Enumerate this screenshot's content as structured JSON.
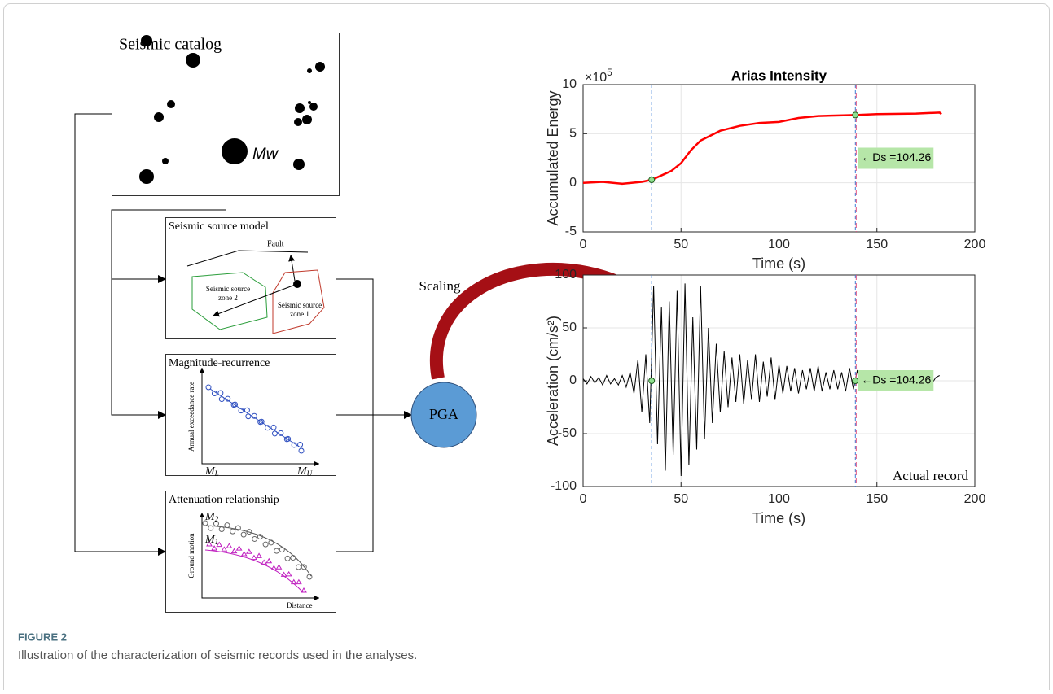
{
  "figure": {
    "label": "FIGURE 2",
    "caption": "Illustration of the characterization of seismic records used in the analyses."
  },
  "diagram": {
    "catalog": {
      "title": "Seismic catalog",
      "mw": "Mw"
    },
    "source_model": {
      "title": "Seismic source model",
      "fault": "Fault",
      "zone2": [
        "Seismic source",
        "zone 2"
      ],
      "zone1": [
        "Seismic source",
        "zone 1"
      ]
    },
    "recurrence": {
      "title": "Magnitude-recurrence",
      "y_label": "Annual exceedance rate",
      "x_start": {
        "base": "M",
        "sub": "L"
      },
      "x_end": {
        "base": "M",
        "sub": "U"
      }
    },
    "attenuation": {
      "title": "Attenuation relationship",
      "y_label": "Ground motion",
      "x_label": "Distance",
      "curve_upper": {
        "base": "M",
        "sub": "2"
      },
      "curve_lower": {
        "base": "M",
        "sub": "1"
      }
    },
    "pga": "PGA",
    "scaling": "Scaling"
  },
  "chart_data": [
    {
      "type": "line",
      "title": "Arias Intensity",
      "x_label": "Time (s)",
      "y_label": "Accumulated Energy",
      "y_scale_label": {
        "base": "×10",
        "exp": "5"
      },
      "x": [
        0,
        10,
        20,
        30,
        35,
        45,
        50,
        55,
        60,
        70,
        80,
        90,
        100,
        110,
        120,
        139,
        150,
        170,
        182,
        183
      ],
      "values": [
        0,
        0.1,
        -0.1,
        0.1,
        0.3,
        1.2,
        2,
        3.3,
        4.3,
        5.3,
        5.8,
        6.1,
        6.2,
        6.6,
        6.8,
        6.9,
        7,
        7.05,
        7.15,
        7
      ],
      "color": "#ff0000",
      "xlim": [
        0,
        200
      ],
      "ylim": [
        -5,
        10
      ],
      "xticks": [
        0,
        50,
        100,
        150,
        200
      ],
      "yticks": [
        -5,
        0,
        5,
        10
      ],
      "grid": true,
      "vlines": [
        35,
        139
      ],
      "markers": {
        "x": [
          35,
          139
        ],
        "values": [
          0.3,
          6.9
        ]
      },
      "annotation": "←Ds =104.26"
    },
    {
      "type": "line",
      "x_label": "Time (s)",
      "y_label": "Acceleration (cm/s²)",
      "corner_text": "Actual record",
      "x": [
        0,
        2,
        4,
        6,
        8,
        10,
        12,
        14,
        16,
        18,
        20,
        22,
        24,
        26,
        28,
        30,
        32,
        34,
        36,
        38,
        40,
        42,
        44,
        46,
        48,
        50,
        52,
        54,
        56,
        58,
        60,
        62,
        64,
        66,
        68,
        70,
        72,
        74,
        76,
        78,
        80,
        82,
        84,
        86,
        88,
        90,
        92,
        94,
        96,
        98,
        100,
        102,
        104,
        106,
        108,
        110,
        112,
        114,
        116,
        118,
        120,
        122,
        124,
        126,
        128,
        130,
        132,
        134,
        136,
        138,
        140,
        142,
        144,
        146,
        148,
        150,
        152,
        154,
        156,
        158,
        160,
        162,
        164,
        166,
        168,
        170,
        172,
        174,
        176,
        178,
        180,
        182
      ],
      "values": [
        2,
        -3,
        4,
        -2,
        3,
        -4,
        5,
        -3,
        2,
        -4,
        5,
        -6,
        8,
        -12,
        20,
        -30,
        25,
        -40,
        90,
        -60,
        70,
        -85,
        75,
        -70,
        85,
        -90,
        92,
        -80,
        60,
        -65,
        90,
        -55,
        50,
        -40,
        35,
        -30,
        28,
        -25,
        22,
        -20,
        25,
        -22,
        20,
        -18,
        25,
        -20,
        18,
        -15,
        22,
        -18,
        15,
        -12,
        14,
        -10,
        12,
        -12,
        10,
        -8,
        12,
        -10,
        14,
        -10,
        8,
        -8,
        10,
        -8,
        8,
        -10,
        12,
        -8,
        10,
        -8,
        8,
        -6,
        7,
        -6,
        5,
        -5,
        6,
        -5,
        5,
        -4,
        6,
        -5,
        4,
        -4,
        5,
        -4,
        4,
        -3,
        3,
        5
      ],
      "color": "#000000",
      "xlim": [
        0,
        200
      ],
      "ylim": [
        -100,
        100
      ],
      "xticks": [
        0,
        50,
        100,
        150,
        200
      ],
      "yticks": [
        -100,
        -50,
        0,
        50,
        100
      ],
      "grid": true,
      "vlines": [
        35,
        139
      ],
      "markers": {
        "x": [
          35,
          139
        ],
        "values": [
          0,
          0
        ]
      },
      "annotation": "←Ds =104.26"
    }
  ]
}
